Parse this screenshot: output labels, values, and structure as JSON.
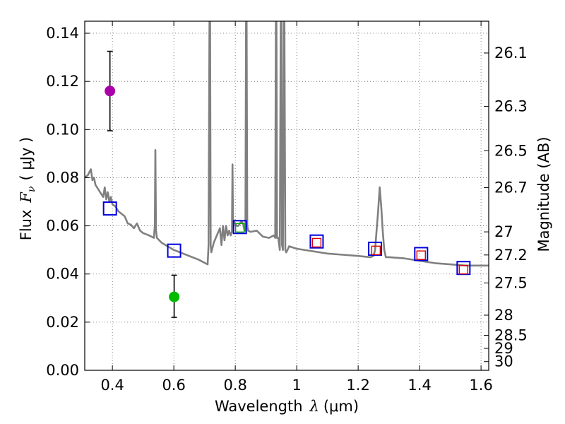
{
  "chart_data": {
    "type": "line",
    "xlabel_prefix": "Wavelength",
    "xlabel_symbol": "λ",
    "xlabel_unit": "(μm)",
    "ylabel_prefix": "Flux",
    "ylabel_symbol": "F",
    "ylabel_sub": "ν",
    "ylabel_unit": "( μJy )",
    "ylabel_right": "Magnitude (AB)",
    "xlim": [
      0.31,
      1.625
    ],
    "ylim": [
      0.0,
      0.145
    ],
    "grid": true,
    "x_ticks": [
      0.4,
      0.6,
      0.8,
      1.0,
      1.2,
      1.4,
      1.6
    ],
    "x_tick_labels": [
      "0.4",
      "0.6",
      "0.8",
      "1",
      "1.2",
      "1.4",
      "1.6"
    ],
    "y_ticks": [
      0.0,
      0.02,
      0.04,
      0.06,
      0.08,
      0.1,
      0.12,
      0.14
    ],
    "y_tick_labels": [
      "0.00",
      "0.02",
      "0.04",
      "0.06",
      "0.08",
      "0.10",
      "0.12",
      "0.14"
    ],
    "right_ticks": [
      {
        "label": "26.1",
        "flux": 0.1318
      },
      {
        "label": "26.3",
        "flux": 0.1096
      },
      {
        "label": "26.5",
        "flux": 0.0912
      },
      {
        "label": "26.7",
        "flux": 0.0759
      },
      {
        "label": "27",
        "flux": 0.0575
      },
      {
        "label": "27.2",
        "flux": 0.0479
      },
      {
        "label": "27.5",
        "flux": 0.0363
      },
      {
        "label": "28",
        "flux": 0.0229
      },
      {
        "label": "28.5",
        "flux": 0.0145
      },
      {
        "label": "29",
        "flux": 0.0091
      },
      {
        "label": "30",
        "flux": 0.0036
      }
    ],
    "series": [
      {
        "name": "model SED",
        "color": "#808080",
        "x": [
          0.31,
          0.32,
          0.33,
          0.335,
          0.34,
          0.345,
          0.35,
          0.36,
          0.37,
          0.375,
          0.38,
          0.385,
          0.39,
          0.395,
          0.4,
          0.41,
          0.42,
          0.43,
          0.44,
          0.45,
          0.46,
          0.47,
          0.48,
          0.49,
          0.5,
          0.52,
          0.535,
          0.538,
          0.54,
          0.542,
          0.545,
          0.56,
          0.6,
          0.64,
          0.68,
          0.71,
          0.713,
          0.716,
          0.718,
          0.72,
          0.722,
          0.724,
          0.73,
          0.74,
          0.75,
          0.755,
          0.76,
          0.765,
          0.77,
          0.775,
          0.78,
          0.785,
          0.789,
          0.791,
          0.793,
          0.795,
          0.8,
          0.805,
          0.81,
          0.815,
          0.82,
          0.825,
          0.83,
          0.833,
          0.835,
          0.837,
          0.839,
          0.842,
          0.85,
          0.87,
          0.89,
          0.91,
          0.925,
          0.93,
          0.932,
          0.934,
          0.936,
          0.94,
          0.945,
          0.948,
          0.95,
          0.952,
          0.955,
          0.958,
          0.96,
          0.963,
          0.966,
          0.97,
          0.975,
          1.0,
          1.05,
          1.1,
          1.15,
          1.2,
          1.24,
          1.25,
          1.255,
          1.26,
          1.265,
          1.27,
          1.275,
          1.28,
          1.285,
          1.29,
          1.3,
          1.35,
          1.4,
          1.45,
          1.5,
          1.55,
          1.6,
          1.625
        ],
        "y": [
          0.08,
          0.081,
          0.0835,
          0.079,
          0.08,
          0.077,
          0.076,
          0.074,
          0.072,
          0.076,
          0.071,
          0.074,
          0.07,
          0.072,
          0.069,
          0.068,
          0.066,
          0.065,
          0.064,
          0.061,
          0.0605,
          0.059,
          0.061,
          0.058,
          0.057,
          0.056,
          0.055,
          0.06,
          0.0915,
          0.058,
          0.055,
          0.053,
          0.05,
          0.048,
          0.046,
          0.044,
          0.052,
          0.145,
          0.145,
          0.052,
          0.049,
          0.05,
          0.053,
          0.056,
          0.059,
          0.052,
          0.06,
          0.054,
          0.06,
          0.056,
          0.058,
          0.056,
          0.0575,
          0.0855,
          0.0575,
          0.062,
          0.061,
          0.06,
          0.06,
          0.061,
          0.062,
          0.061,
          0.058,
          0.058,
          0.145,
          0.145,
          0.06,
          0.058,
          0.0575,
          0.058,
          0.0555,
          0.055,
          0.056,
          0.055,
          0.145,
          0.145,
          0.055,
          0.055,
          0.05,
          0.145,
          0.145,
          0.052,
          0.05,
          0.145,
          0.145,
          0.05,
          0.049,
          0.05,
          0.0515,
          0.0505,
          0.0495,
          0.0485,
          0.048,
          0.0475,
          0.047,
          0.0475,
          0.05,
          0.058,
          0.066,
          0.076,
          0.068,
          0.058,
          0.05,
          0.047,
          0.047,
          0.0465,
          0.0455,
          0.0445,
          0.044,
          0.0435,
          0.0435,
          0.0435
        ]
      }
    ],
    "blue_squares": [
      {
        "x": 0.392,
        "y": 0.0672
      },
      {
        "x": 0.601,
        "y": 0.0497
      },
      {
        "x": 0.815,
        "y": 0.0595
      },
      {
        "x": 1.065,
        "y": 0.0535
      },
      {
        "x": 1.255,
        "y": 0.0505
      },
      {
        "x": 1.405,
        "y": 0.0483
      },
      {
        "x": 1.543,
        "y": 0.0425
      }
    ],
    "inner_squares": [
      {
        "x": 0.815,
        "y": 0.0592,
        "color": "#00aa00"
      },
      {
        "x": 1.065,
        "y": 0.053,
        "color": "#e00000"
      },
      {
        "x": 1.258,
        "y": 0.0498,
        "color": "#e00000"
      },
      {
        "x": 1.405,
        "y": 0.0478,
        "color": "#e00000"
      },
      {
        "x": 1.543,
        "y": 0.0418,
        "color": "#e00000"
      }
    ],
    "photometry": [
      {
        "x": 0.392,
        "y": 0.116,
        "err_low": 0.0995,
        "err_high": 0.1325,
        "color": "#aa00aa"
      },
      {
        "x": 0.601,
        "y": 0.0305,
        "err_low": 0.022,
        "err_high": 0.0395,
        "color": "#00bb00"
      }
    ],
    "colors": {
      "square_outline": "#0000dd",
      "grid": "#666666",
      "axis": "#000000"
    }
  }
}
